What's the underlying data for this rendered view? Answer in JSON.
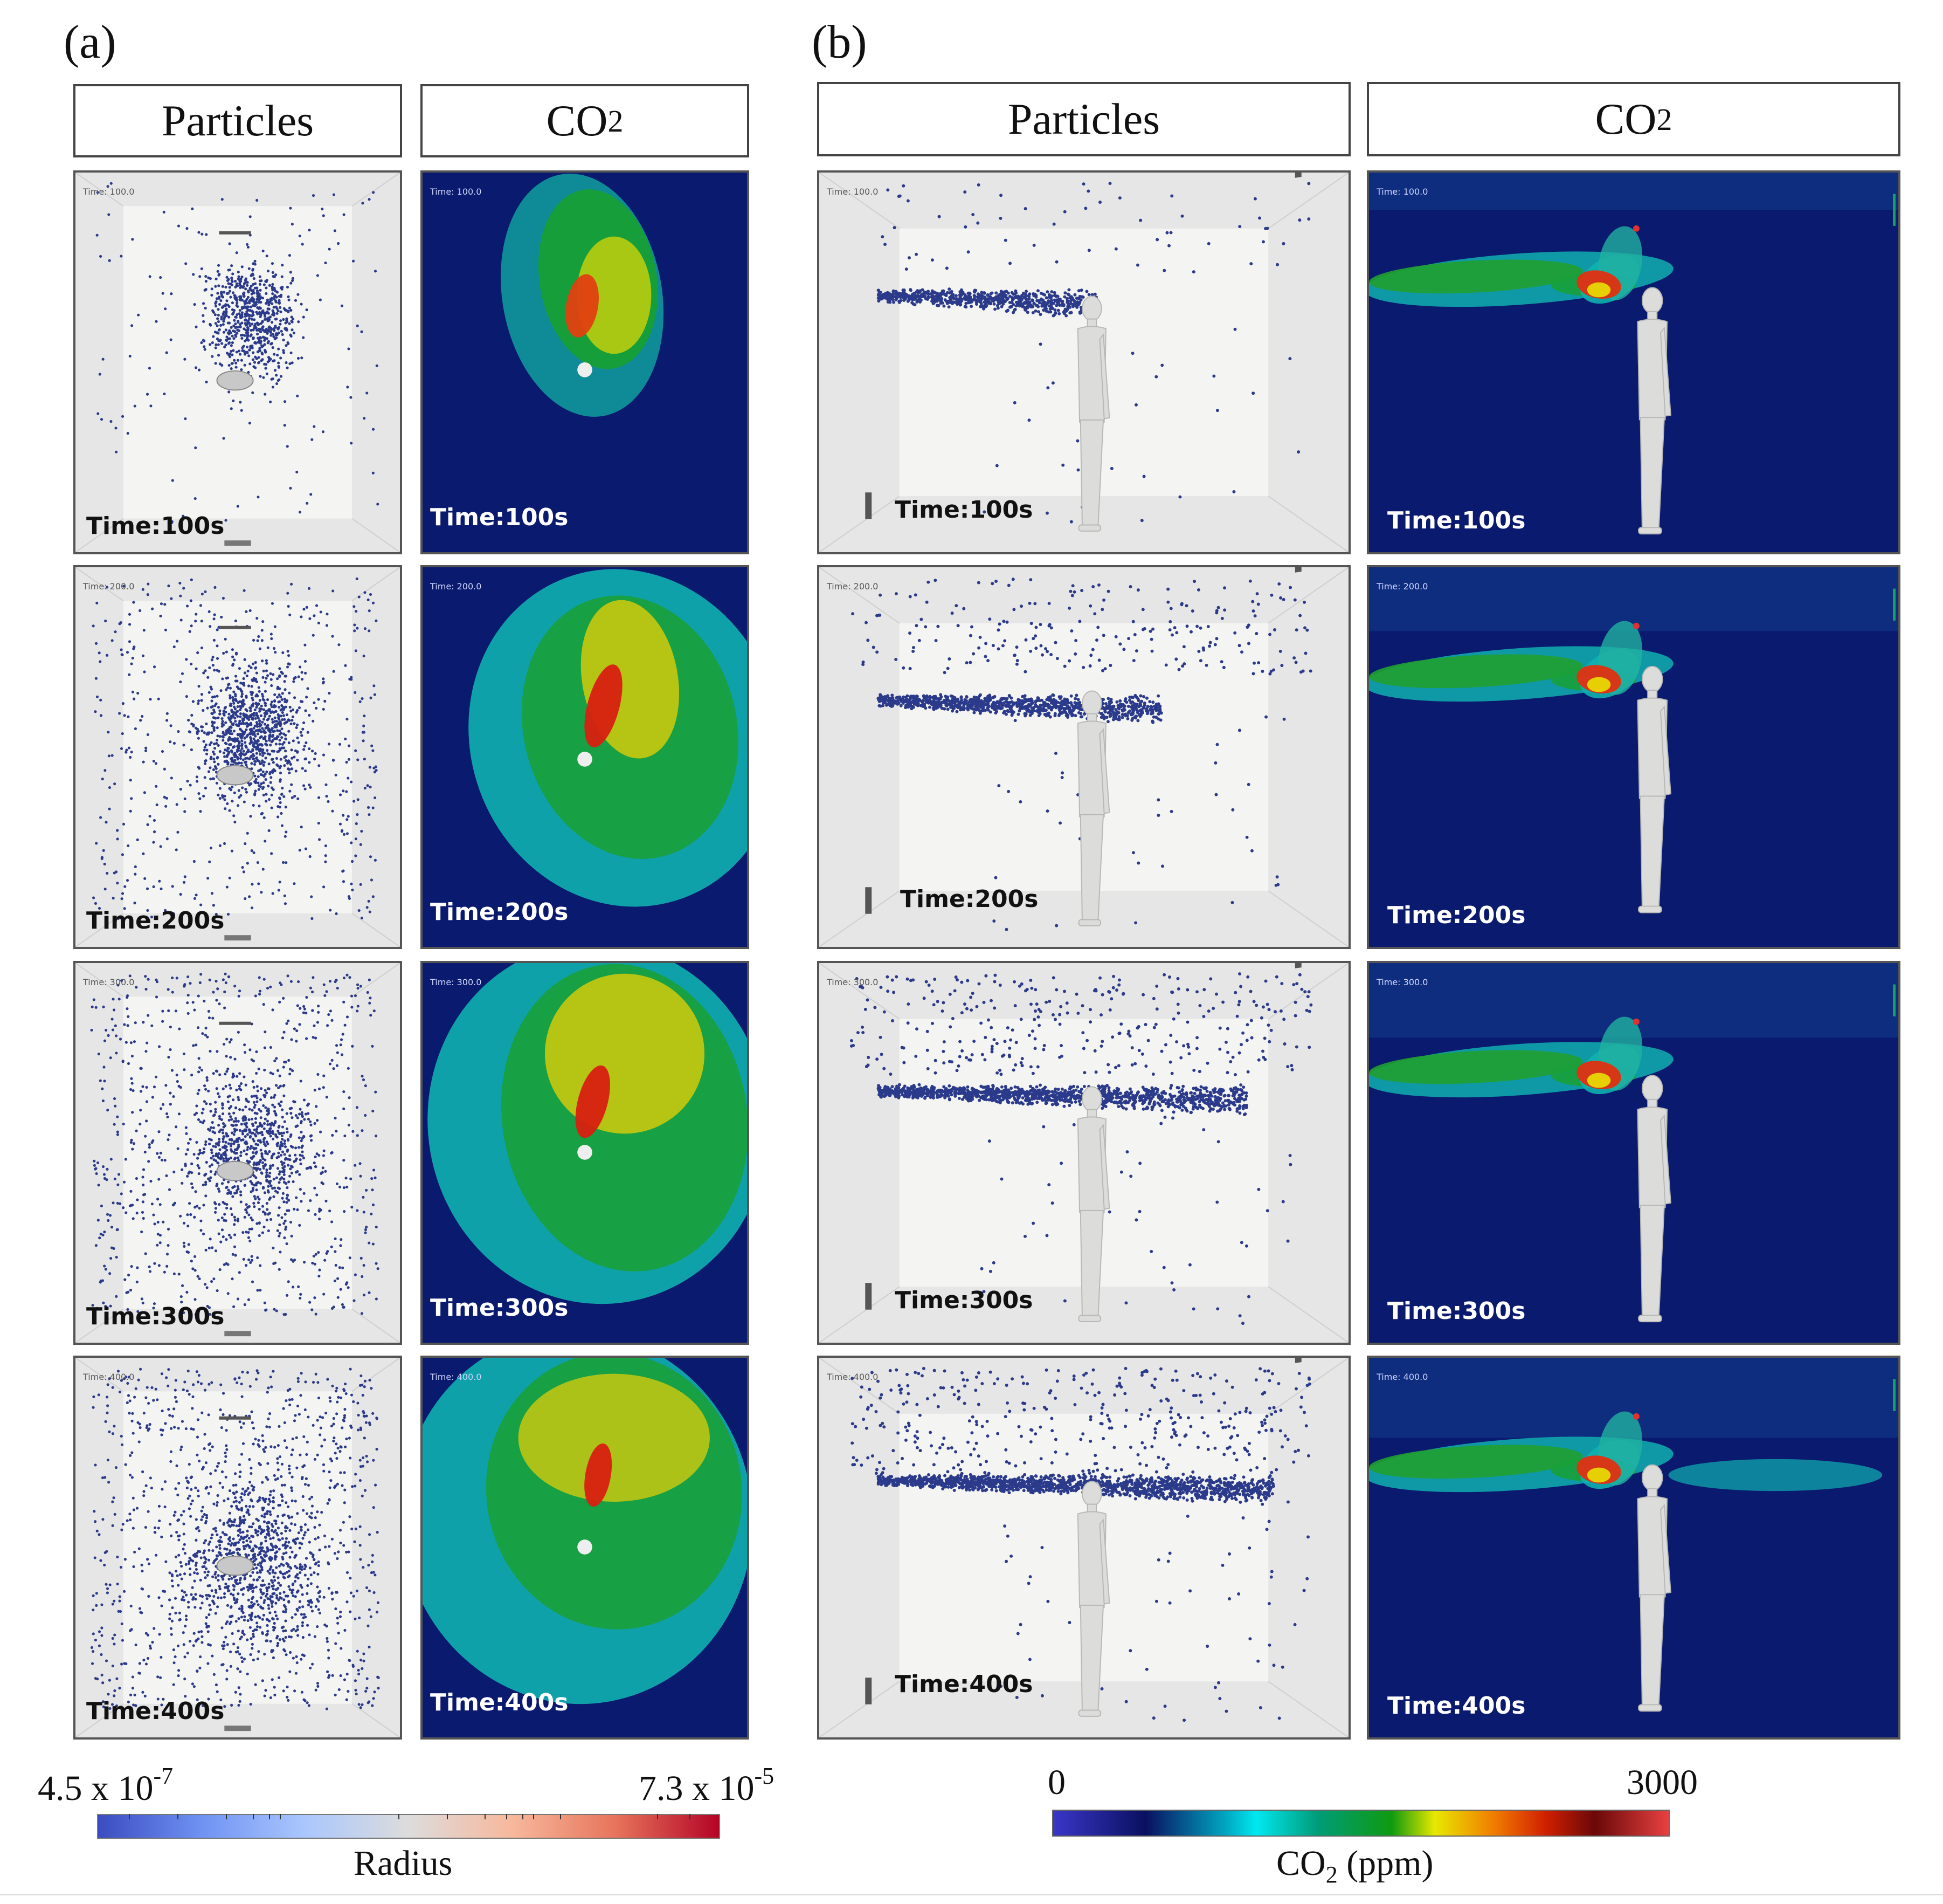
{
  "figure": {
    "panel_a_label": "(a)",
    "panel_b_label": "(b)",
    "headers": {
      "particles": "Particles",
      "co2_main": "CO",
      "co2_sub": "2"
    },
    "times": [
      "Time:100s",
      "Time:200s",
      "Time:300s",
      "Time:400s"
    ],
    "small_times": [
      "Time: 100.0",
      "Time: 200.0",
      "Time: 300.0",
      "Time: 400.0"
    ]
  },
  "colorbars": {
    "radius": {
      "min_base": "4.5 x 10",
      "min_exp": "-7",
      "max_base": "7.3 x 10",
      "max_exp": "-5",
      "title": "Radius"
    },
    "co2": {
      "min": "0",
      "max": "3000",
      "title_main": "CO",
      "title_sub": "2",
      "title_unit": " (ppm)"
    }
  },
  "colors": {
    "particle": "#2b3a8a",
    "co2_background": "#0a1a6e",
    "room_wall": "#e6e6e6",
    "room_floor": "#f4f4f2"
  }
}
